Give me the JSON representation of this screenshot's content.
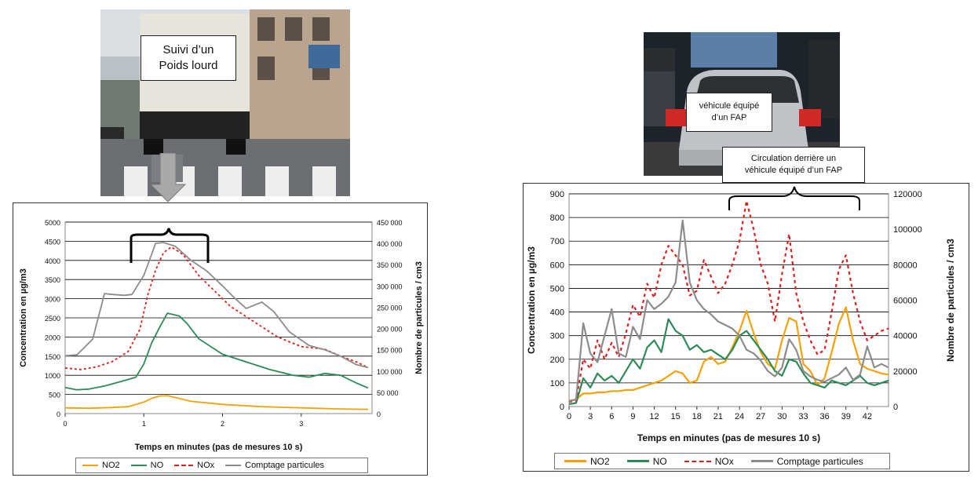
{
  "left": {
    "callout": {
      "line1": "Suivi d’un",
      "line2": "Poids lourd"
    },
    "legend": [
      {
        "label": "NO2",
        "color": "#f5a20a",
        "dash": false
      },
      {
        "label": "NO",
        "color": "#2e8b57",
        "dash": false
      },
      {
        "label": "NOx",
        "color": "#e02020",
        "dash": true
      },
      {
        "label": "Comptage particules",
        "color": "#8c8c8c",
        "dash": false
      }
    ]
  },
  "right": {
    "callout_vehicle": {
      "line1": "véhicule équipé",
      "line2": "d’un FAP"
    },
    "callout_circulation": {
      "line1": "Circulation derrière un",
      "line2": "véhicule équipé d’un FAP"
    },
    "legend": [
      {
        "label": "NO2",
        "color": "#f5a20a",
        "dash": false
      },
      {
        "label": "NO",
        "color": "#2e8b57",
        "dash": false
      },
      {
        "label": "NOx",
        "color": "#e02020",
        "dash": true
      },
      {
        "label": "Comptage particules",
        "color": "#8c8c8c",
        "dash": false
      }
    ]
  },
  "chart_data": [
    {
      "type": "line",
      "xlabel": "Temps  en minutes (pas de mesures 10 s)",
      "ylabel": "Concentration en µg/m3",
      "y2label": "Nombre de particules / cm3",
      "xlim": [
        0,
        3.9
      ],
      "ylim": [
        0,
        5000
      ],
      "y2lim": [
        0,
        450000
      ],
      "xticks": [
        "0",
        "1",
        "2",
        "3"
      ],
      "yticks": [
        "0",
        "500",
        "1000",
        "1500",
        "2000",
        "2500",
        "3000",
        "3500",
        "4000",
        "4500",
        "5000"
      ],
      "y2ticks": [
        "0",
        "50 000",
        "100 000",
        "150 000",
        "200 000",
        "250 000",
        "300 000",
        "350 000",
        "400 000",
        "450 000"
      ],
      "grid": true,
      "series": [
        {
          "name": "NO2",
          "color": "#f5a20a",
          "dash": false,
          "axis": "left",
          "x": [
            0,
            0.3,
            0.6,
            0.8,
            1.0,
            1.1,
            1.2,
            1.3,
            1.4,
            1.6,
            2.0,
            2.5,
            3.0,
            3.5,
            3.85
          ],
          "y": [
            150,
            140,
            160,
            180,
            300,
            400,
            460,
            470,
            420,
            320,
            240,
            180,
            150,
            120,
            110
          ]
        },
        {
          "name": "NO",
          "color": "#2e8b57",
          "dash": false,
          "axis": "left",
          "x": [
            0,
            0.15,
            0.3,
            0.5,
            0.75,
            0.9,
            1.0,
            1.1,
            1.2,
            1.3,
            1.45,
            1.55,
            1.7,
            2.0,
            2.3,
            2.6,
            2.9,
            3.1,
            3.3,
            3.5,
            3.7,
            3.85
          ],
          "y": [
            680,
            620,
            640,
            720,
            860,
            950,
            1300,
            1850,
            2250,
            2620,
            2550,
            2350,
            1950,
            1550,
            1350,
            1150,
            1000,
            950,
            1050,
            1000,
            800,
            670
          ]
        },
        {
          "name": "NOx",
          "color": "#e02020",
          "dash": true,
          "axis": "left",
          "x": [
            0,
            0.2,
            0.4,
            0.6,
            0.8,
            0.95,
            1.05,
            1.15,
            1.25,
            1.35,
            1.5,
            1.7,
            1.9,
            2.1,
            2.4,
            2.7,
            3.0,
            3.3,
            3.5,
            3.7,
            3.85
          ],
          "y": [
            1190,
            1150,
            1220,
            1360,
            1620,
            2200,
            3100,
            3750,
            4200,
            4350,
            4150,
            3600,
            3200,
            2800,
            2400,
            2000,
            1750,
            1680,
            1500,
            1350,
            1200
          ]
        },
        {
          "name": "Comptage particules",
          "color": "#8c8c8c",
          "dash": false,
          "axis": "right",
          "x": [
            0,
            0.15,
            0.35,
            0.5,
            0.6,
            0.75,
            0.85,
            1.0,
            1.1,
            1.15,
            1.25,
            1.4,
            1.6,
            1.8,
            2.0,
            2.15,
            2.3,
            2.5,
            2.65,
            2.85,
            3.1,
            3.3,
            3.5,
            3.7,
            3.85
          ],
          "y": [
            136000,
            138000,
            175000,
            282000,
            280000,
            278000,
            280000,
            325000,
            375000,
            400000,
            402000,
            393000,
            360000,
            335000,
            300000,
            272000,
            247000,
            262000,
            240000,
            192000,
            160000,
            150000,
            135000,
            115000,
            108000
          ]
        }
      ]
    },
    {
      "type": "line",
      "xlabel": "Temps en minutes (pas de mesures 10 s)",
      "ylabel": "Concentration en µg/m3",
      "y2label": "Nombre de particules / cm3",
      "xlim": [
        0,
        45
      ],
      "ylim": [
        0,
        900
      ],
      "y2lim": [
        0,
        120000
      ],
      "xticks": [
        "0",
        "3",
        "6",
        "9",
        "12",
        "15",
        "18",
        "21",
        "24",
        "27",
        "30",
        "33",
        "36",
        "39",
        "42"
      ],
      "yticks": [
        "0",
        "100",
        "200",
        "300",
        "400",
        "500",
        "600",
        "700",
        "800",
        "900"
      ],
      "y2ticks": [
        "0",
        "20000",
        "40000",
        "60000",
        "80000",
        "100000",
        "120000"
      ],
      "grid": true,
      "series": [
        {
          "name": "NO2",
          "color": "#f5a20a",
          "dash": false,
          "axis": "left",
          "x": [
            0,
            1,
            2,
            3,
            4,
            5,
            6,
            7,
            8,
            9,
            10,
            11,
            12,
            13,
            14,
            15,
            16,
            17,
            18,
            19,
            20,
            21,
            22,
            23,
            24,
            25,
            26,
            27,
            28,
            29,
            30,
            31,
            32,
            33,
            34,
            35,
            36,
            37,
            38,
            39,
            40,
            41,
            42,
            43,
            44,
            45
          ],
          "y": [
            25,
            30,
            55,
            55,
            60,
            60,
            65,
            65,
            70,
            70,
            80,
            90,
            100,
            110,
            130,
            150,
            140,
            100,
            110,
            190,
            210,
            180,
            190,
            250,
            320,
            405,
            310,
            230,
            180,
            160,
            280,
            375,
            360,
            180,
            150,
            90,
            120,
            230,
            350,
            420,
            280,
            180,
            160,
            150,
            140,
            135
          ]
        },
        {
          "name": "NO",
          "color": "#2e8b57",
          "dash": false,
          "axis": "left",
          "x": [
            0,
            1,
            2,
            3,
            4,
            5,
            6,
            7,
            8,
            9,
            10,
            11,
            12,
            13,
            14,
            15,
            16,
            17,
            18,
            19,
            20,
            21,
            22,
            23,
            24,
            25,
            26,
            27,
            28,
            29,
            30,
            31,
            32,
            33,
            34,
            35,
            36,
            37,
            38,
            39,
            40,
            41,
            42,
            43,
            44,
            45
          ],
          "y": [
            10,
            15,
            120,
            80,
            140,
            110,
            130,
            100,
            150,
            200,
            160,
            250,
            280,
            230,
            370,
            320,
            300,
            240,
            260,
            230,
            240,
            220,
            200,
            240,
            300,
            320,
            280,
            240,
            200,
            150,
            130,
            200,
            190,
            140,
            100,
            90,
            80,
            110,
            100,
            90,
            110,
            130,
            100,
            90,
            100,
            110
          ]
        },
        {
          "name": "NOx",
          "color": "#e02020",
          "dash": true,
          "axis": "left",
          "x": [
            0,
            1,
            2,
            3,
            4,
            5,
            6,
            7,
            8,
            9,
            10,
            11,
            12,
            13,
            14,
            15,
            16,
            17,
            18,
            19,
            20,
            21,
            22,
            23,
            24,
            25,
            26,
            27,
            28,
            29,
            30,
            31,
            32,
            33,
            34,
            35,
            36,
            37,
            38,
            39,
            40,
            41,
            42,
            43,
            44,
            45
          ],
          "y": [
            20,
            25,
            200,
            160,
            280,
            200,
            270,
            210,
            310,
            430,
            380,
            520,
            460,
            600,
            680,
            640,
            600,
            470,
            490,
            620,
            550,
            480,
            520,
            600,
            700,
            870,
            750,
            600,
            520,
            360,
            560,
            730,
            480,
            360,
            280,
            220,
            240,
            400,
            580,
            640,
            480,
            360,
            280,
            300,
            320,
            330
          ]
        },
        {
          "name": "Comptage particules",
          "color": "#8c8c8c",
          "dash": false,
          "axis": "right",
          "x": [
            0,
            1,
            2,
            3,
            4,
            5,
            6,
            7,
            8,
            9,
            10,
            11,
            12,
            13,
            14,
            15,
            16,
            17,
            18,
            19,
            20,
            21,
            22,
            23,
            24,
            25,
            26,
            27,
            28,
            29,
            30,
            31,
            32,
            33,
            34,
            35,
            36,
            37,
            38,
            39,
            40,
            41,
            42,
            43,
            44,
            45
          ],
          "y": [
            3000,
            4000,
            47000,
            30000,
            25000,
            40000,
            55000,
            30000,
            28000,
            45000,
            38000,
            60000,
            55000,
            58000,
            62000,
            70000,
            105000,
            70000,
            60000,
            55000,
            52000,
            48000,
            46000,
            44000,
            40000,
            32000,
            30000,
            26000,
            20000,
            17000,
            22000,
            38000,
            32000,
            20000,
            17000,
            15000,
            14000,
            16000,
            18000,
            22000,
            15000,
            18000,
            34000,
            22000,
            24000,
            22000
          ]
        }
      ]
    }
  ]
}
